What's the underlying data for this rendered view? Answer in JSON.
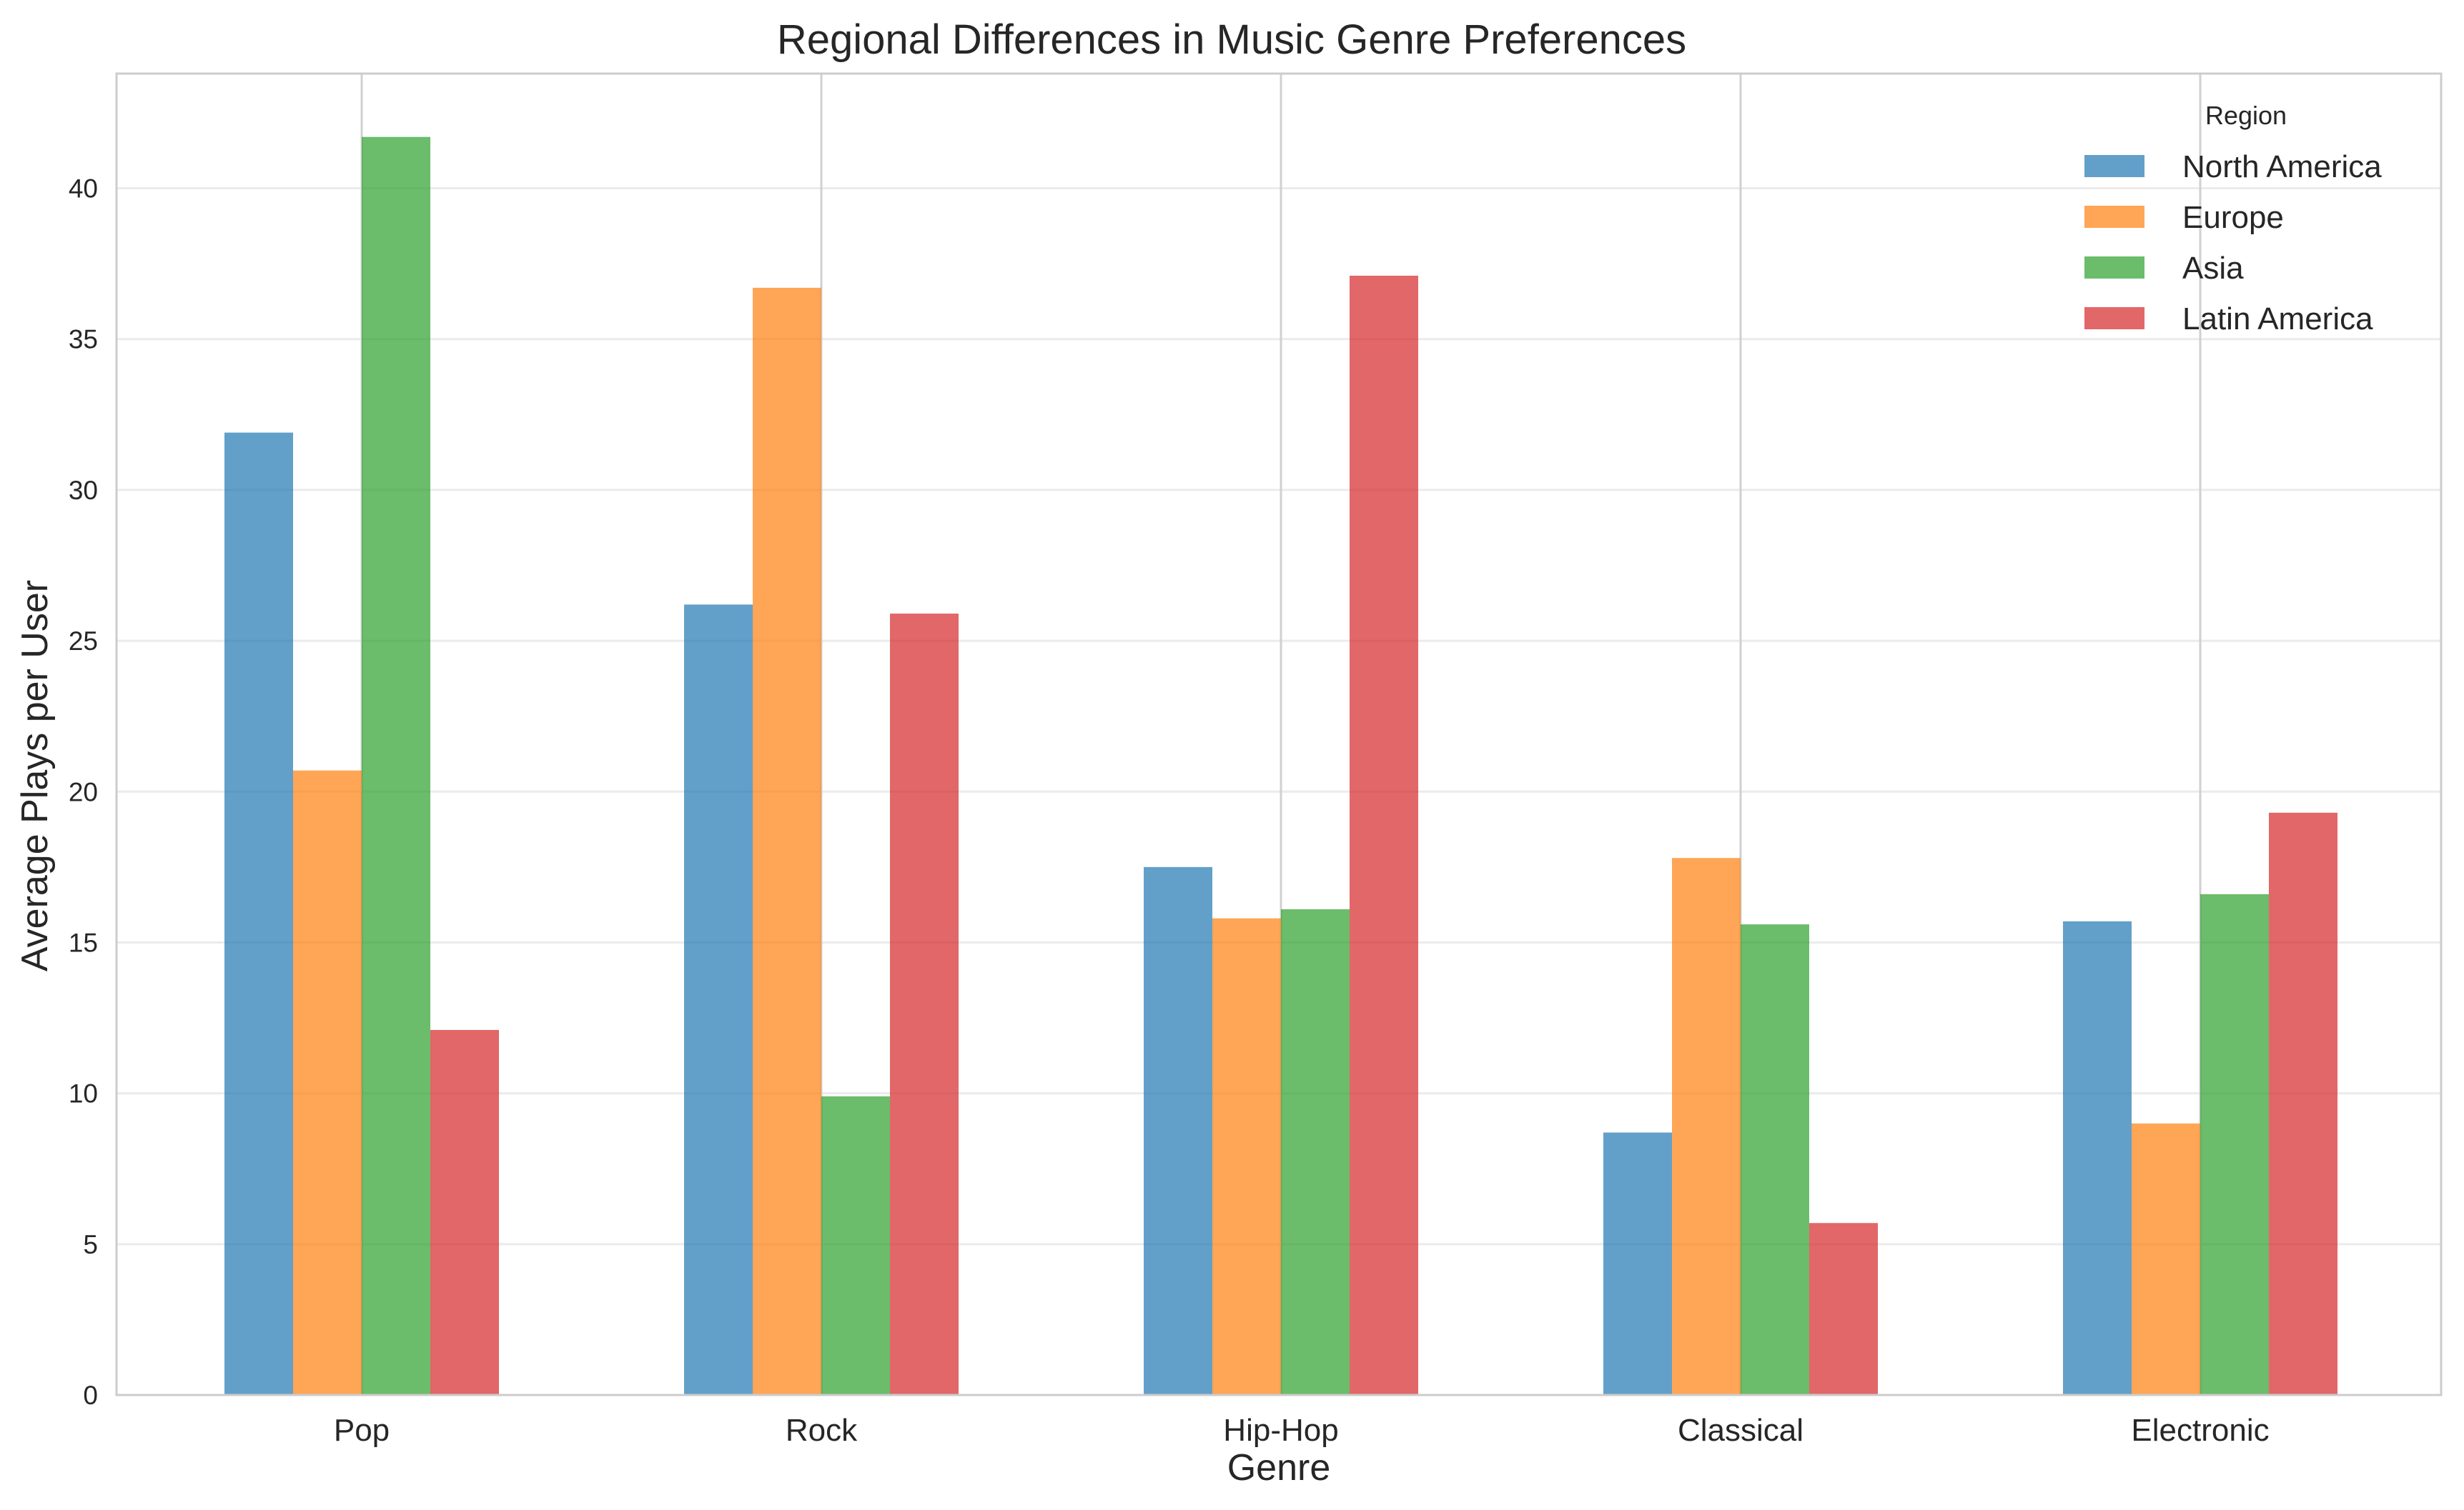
{
  "chart_data": {
    "type": "bar",
    "title": "Regional Differences in Music Genre Preferences",
    "xlabel": "Genre",
    "ylabel": "Average Plays per User",
    "categories": [
      "Pop",
      "Rock",
      "Hip-Hop",
      "Classical",
      "Electronic"
    ],
    "series": [
      {
        "name": "North America",
        "color": "#1f77b4",
        "values": [
          31.9,
          26.2,
          17.5,
          8.7,
          15.7
        ]
      },
      {
        "name": "Europe",
        "color": "#ff7f0e",
        "values": [
          20.7,
          36.7,
          15.8,
          17.8,
          9.0
        ]
      },
      {
        "name": "Asia",
        "color": "#2ca02c",
        "values": [
          41.7,
          9.9,
          16.1,
          15.6,
          16.6
        ]
      },
      {
        "name": "Latin America",
        "color": "#d62728",
        "values": [
          12.1,
          25.9,
          37.1,
          5.7,
          19.3
        ]
      }
    ],
    "ylim": [
      0,
      43.8
    ],
    "yticks": [
      0,
      5,
      10,
      15,
      20,
      25,
      30,
      35,
      40
    ],
    "grid": true,
    "legend": {
      "title": "Region",
      "position": "top-right"
    }
  }
}
